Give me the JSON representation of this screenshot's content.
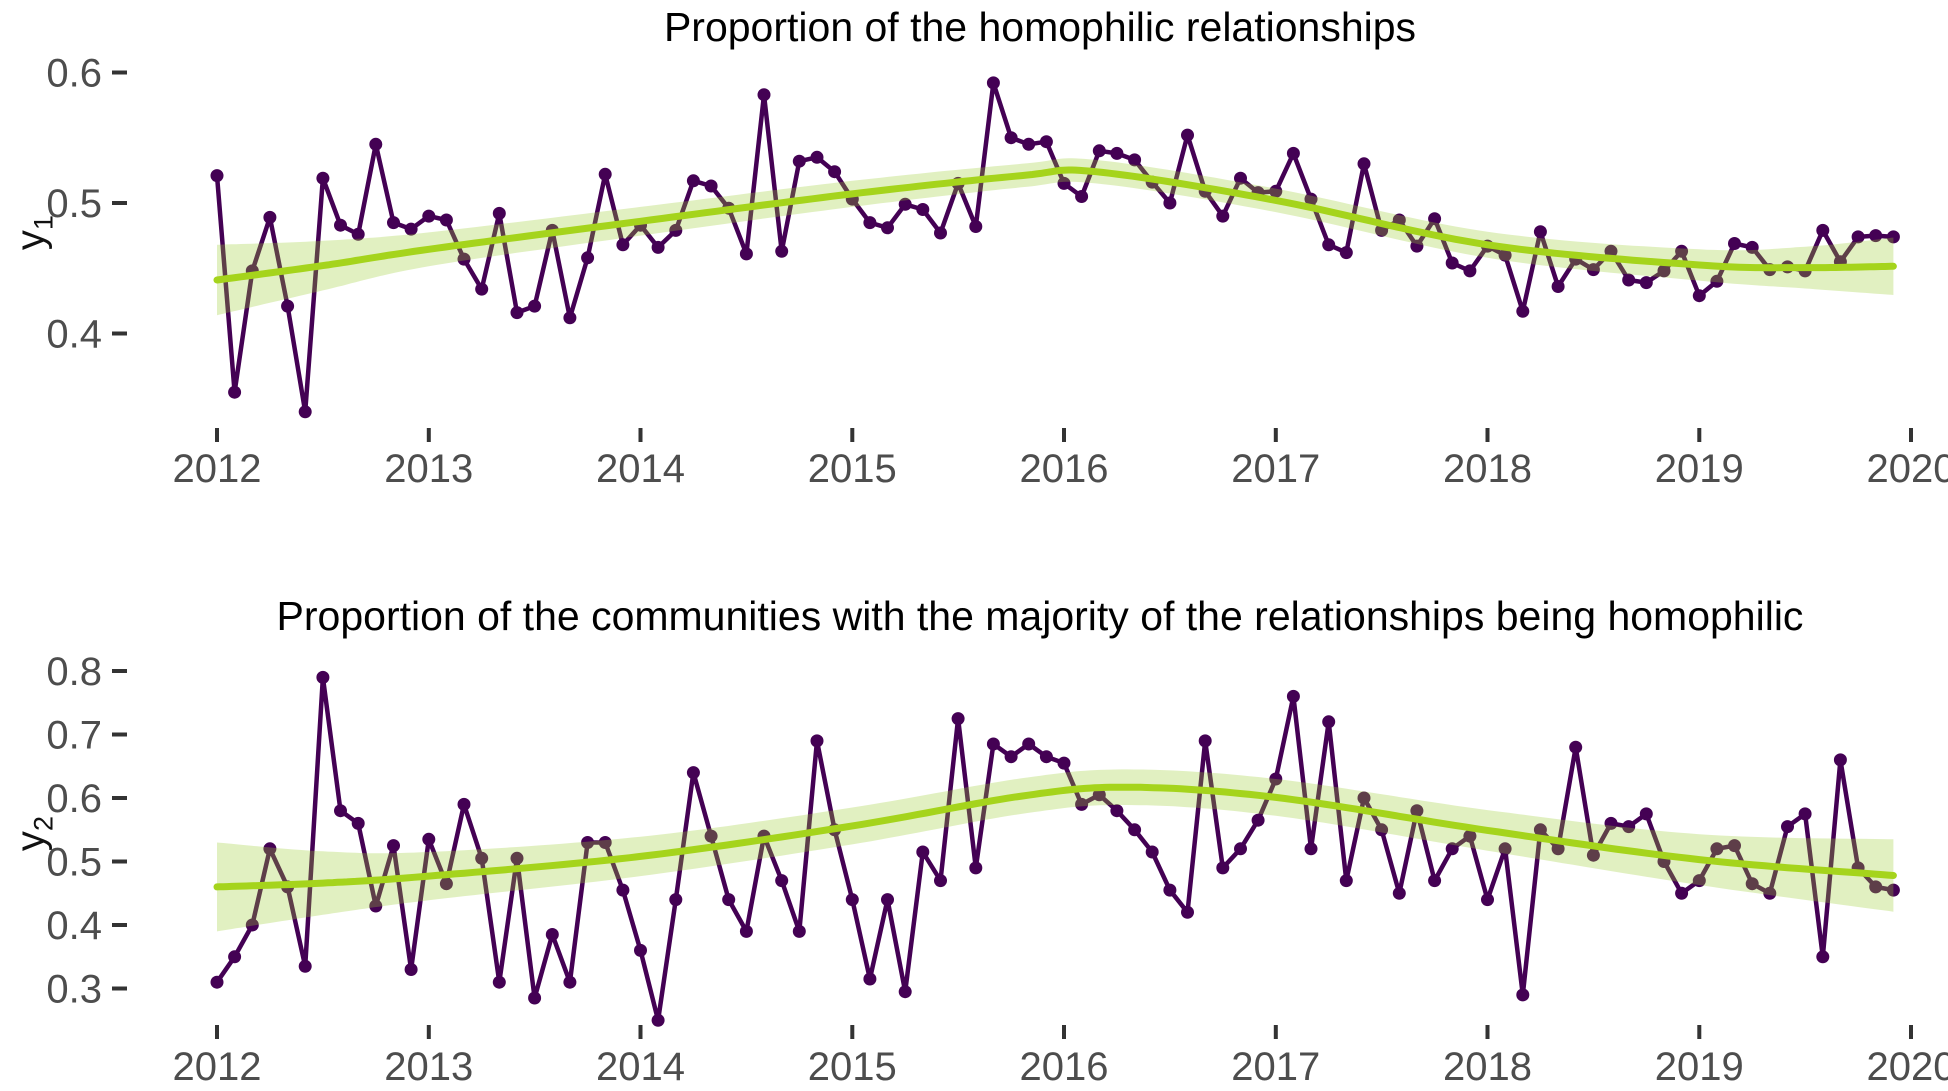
{
  "colors": {
    "series": "#440154",
    "smooth_line": "#a5d41c",
    "smooth_band": "#9acd32",
    "band_opacity": 0.3,
    "axis_text": "#4d4d4d",
    "tick_mark": "#333333",
    "title_text": "#000000"
  },
  "chart_data": [
    {
      "type": "line",
      "title": "Proportion of the homophilic relationships",
      "ylabel": {
        "base": "y",
        "sub": "1"
      },
      "xlabel": "",
      "legend": "none",
      "grid": "off",
      "x_tick_labels": [
        "2012",
        "2013",
        "2014",
        "2015",
        "2016",
        "2017",
        "2018",
        "2019",
        "2020"
      ],
      "x_tick_years": [
        2012,
        2013,
        2014,
        2015,
        2016,
        2017,
        2018,
        2019,
        2020
      ],
      "y_ticks": [
        {
          "label": "0.6",
          "value": 0.6
        },
        {
          "label": "0.5",
          "value": 0.5
        },
        {
          "label": "0.4",
          "value": 0.4
        }
      ],
      "ylim": [
        0.33,
        0.62
      ],
      "x_start_year": 2012,
      "points_per_year": 12,
      "series": [
        {
          "name": "monthly proportion",
          "values": [
            0.521,
            0.355,
            0.448,
            0.489,
            0.421,
            0.34,
            0.519,
            0.483,
            0.476,
            0.545,
            0.485,
            0.48,
            0.49,
            0.487,
            0.457,
            0.434,
            0.492,
            0.416,
            0.421,
            0.479,
            0.412,
            0.458,
            0.522,
            0.468,
            0.483,
            0.466,
            0.479,
            0.517,
            0.513,
            0.496,
            0.461,
            0.583,
            0.463,
            0.532,
            0.535,
            0.524,
            0.503,
            0.485,
            0.481,
            0.499,
            0.495,
            0.477,
            0.515,
            0.482,
            0.592,
            0.55,
            0.545,
            0.547,
            0.515,
            0.505,
            0.54,
            0.538,
            0.533,
            0.516,
            0.5,
            0.552,
            0.509,
            0.49,
            0.519,
            0.508,
            0.509,
            0.538,
            0.503,
            0.468,
            0.462,
            0.53,
            0.479,
            0.487,
            0.467,
            0.488,
            0.454,
            0.448,
            0.467,
            0.46,
            0.417,
            0.478,
            0.436,
            0.457,
            0.449,
            0.463,
            0.441,
            0.439,
            0.448,
            0.463,
            0.429,
            0.44,
            0.469,
            0.466,
            0.449,
            0.451,
            0.448,
            0.479,
            0.455,
            0.474,
            0.475,
            0.474
          ]
        }
      ],
      "smooth": {
        "name": "loess trend with confidence band",
        "points": [
          [
            2012.0,
            0.441,
            0.027
          ],
          [
            2012.5,
            0.452,
            0.019
          ],
          [
            2013.0,
            0.4645,
            0.013
          ],
          [
            2014.0,
            0.486,
            0.011
          ],
          [
            2015.0,
            0.507,
            0.01
          ],
          [
            2015.8,
            0.521,
            0.009
          ],
          [
            2016.15,
            0.524,
            0.009
          ],
          [
            2017.0,
            0.502,
            0.009
          ],
          [
            2018.0,
            0.468,
            0.01
          ],
          [
            2019.0,
            0.4525,
            0.012
          ],
          [
            2019.5,
            0.4505,
            0.016
          ],
          [
            2019.917,
            0.4515,
            0.022
          ]
        ]
      }
    },
    {
      "type": "line",
      "title": "Proportion of the communities with the majority of the relationships being homophilic",
      "ylabel": {
        "base": "y",
        "sub": "2"
      },
      "xlabel": "",
      "legend": "none",
      "grid": "off",
      "x_tick_labels": [
        "2012",
        "2013",
        "2014",
        "2015",
        "2016",
        "2017",
        "2018",
        "2019",
        "2020"
      ],
      "x_tick_years": [
        2012,
        2013,
        2014,
        2015,
        2016,
        2017,
        2018,
        2019,
        2020
      ],
      "y_ticks": [
        {
          "label": "0.8",
          "value": 0.8
        },
        {
          "label": "0.7",
          "value": 0.7
        },
        {
          "label": "0.6",
          "value": 0.6
        },
        {
          "label": "0.5",
          "value": 0.5
        },
        {
          "label": "0.4",
          "value": 0.4
        },
        {
          "label": "0.3",
          "value": 0.3
        }
      ],
      "ylim": [
        0.24,
        0.82
      ],
      "x_start_year": 2012,
      "points_per_year": 12,
      "series": [
        {
          "name": "monthly proportion",
          "values": [
            0.31,
            0.35,
            0.4,
            0.52,
            0.46,
            0.335,
            0.79,
            0.58,
            0.56,
            0.43,
            0.525,
            0.33,
            0.535,
            0.465,
            0.59,
            0.505,
            0.31,
            0.505,
            0.285,
            0.385,
            0.31,
            0.53,
            0.53,
            0.455,
            0.36,
            0.25,
            0.44,
            0.64,
            0.54,
            0.44,
            0.39,
            0.54,
            0.47,
            0.39,
            0.69,
            0.55,
            0.44,
            0.315,
            0.44,
            0.295,
            0.515,
            0.47,
            0.725,
            0.49,
            0.685,
            0.665,
            0.685,
            0.665,
            0.655,
            0.59,
            0.605,
            0.58,
            0.55,
            0.515,
            0.455,
            0.42,
            0.69,
            0.49,
            0.52,
            0.565,
            0.63,
            0.76,
            0.52,
            0.72,
            0.47,
            0.6,
            0.55,
            0.45,
            0.58,
            0.47,
            0.52,
            0.54,
            0.44,
            0.52,
            0.29,
            0.55,
            0.52,
            0.68,
            0.51,
            0.56,
            0.555,
            0.575,
            0.5,
            0.45,
            0.47,
            0.52,
            0.525,
            0.465,
            0.45,
            0.555,
            0.575,
            0.35,
            0.66,
            0.49,
            0.46,
            0.455
          ]
        }
      ],
      "smooth": {
        "name": "loess trend with confidence band",
        "points": [
          [
            2012.0,
            0.46,
            0.07
          ],
          [
            2012.5,
            0.466,
            0.05
          ],
          [
            2013.0,
            0.477,
            0.038
          ],
          [
            2014.0,
            0.508,
            0.031
          ],
          [
            2015.0,
            0.556,
            0.029
          ],
          [
            2015.8,
            0.603,
            0.028
          ],
          [
            2016.3,
            0.617,
            0.028
          ],
          [
            2017.0,
            0.601,
            0.029
          ],
          [
            2018.0,
            0.549,
            0.032
          ],
          [
            2019.0,
            0.503,
            0.04
          ],
          [
            2019.917,
            0.478,
            0.057
          ]
        ]
      }
    }
  ]
}
